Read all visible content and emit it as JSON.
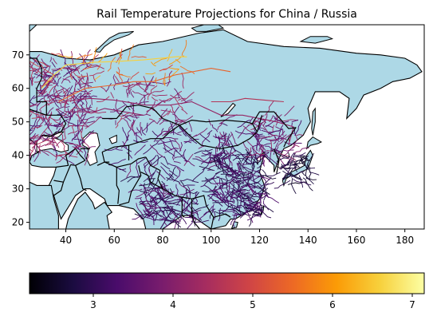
{
  "chart_data": [
    {
      "type": "heatmap",
      "title": "Rail Temperature Projections for China / Russia",
      "xlim": [
        25,
        188
      ],
      "ylim": [
        18,
        79
      ],
      "x_ticks": [
        40,
        60,
        80,
        100,
        120,
        140,
        160,
        180
      ],
      "y_ticks": [
        20,
        30,
        40,
        50,
        60,
        70
      ],
      "grid": false,
      "colors": {
        "land": "#add8e6",
        "border": "#000000"
      }
    },
    {
      "type": "heatmap",
      "title": "",
      "colormap": "inferno",
      "range": [
        2.2,
        7.15
      ],
      "ticks": [
        3,
        4,
        5,
        6,
        7
      ],
      "colormap_stops": [
        "#000004",
        "#1b0c41",
        "#4a0c6b",
        "#781c6d",
        "#a52c60",
        "#cf4446",
        "#ed6925",
        "#fb9b06",
        "#f7d13d",
        "#fcffa4"
      ]
    }
  ]
}
